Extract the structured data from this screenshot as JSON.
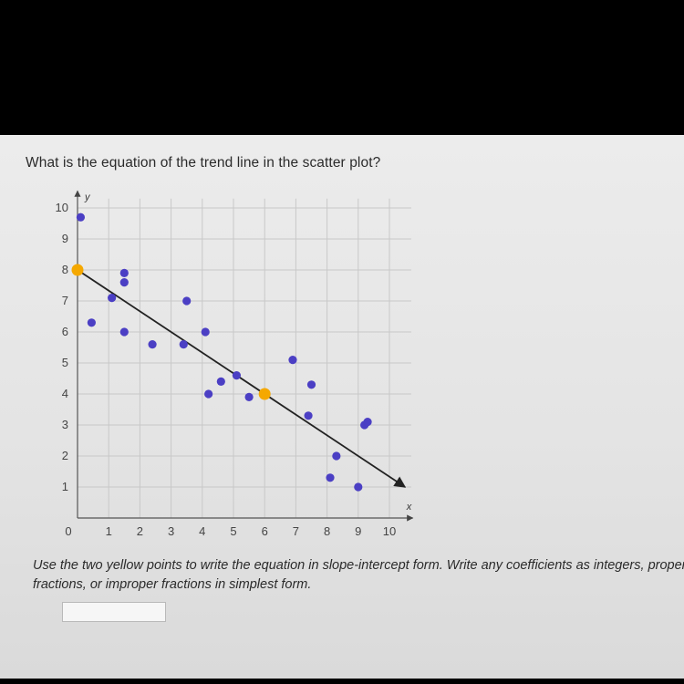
{
  "question": "What is the equation of the trend line in the scatter plot?",
  "instructions": "Use the two yellow points to write the equation in slope-intercept form. Write any coefficients as integers, proper fractions, or improper fractions in simplest form.",
  "answer_input": {
    "value": ""
  },
  "colors": {
    "point": "#4b3fc4",
    "highlight": "#f5a800",
    "line": "#222222",
    "grid": "#c8c8c8"
  },
  "chart_data": {
    "type": "scatter",
    "title": "",
    "xlabel": "x",
    "ylabel": "y",
    "xlim": [
      0,
      10
    ],
    "ylim": [
      0,
      10
    ],
    "grid": true,
    "x_ticks": [
      "0",
      "1",
      "2",
      "3",
      "4",
      "5",
      "6",
      "7",
      "8",
      "9",
      "10"
    ],
    "y_ticks": [
      "1",
      "2",
      "3",
      "4",
      "5",
      "6",
      "7",
      "8",
      "9",
      "10"
    ],
    "series": [
      {
        "points": [
          [
            0.1,
            9.7
          ],
          [
            0.45,
            6.3
          ],
          [
            1.1,
            7.1
          ],
          [
            1.5,
            7.9
          ],
          [
            1.5,
            7.6
          ],
          [
            1.5,
            6.0
          ],
          [
            2.4,
            5.6
          ],
          [
            3.4,
            5.6
          ],
          [
            3.5,
            7.0
          ],
          [
            4.2,
            4.0
          ],
          [
            4.1,
            6.0
          ],
          [
            4.6,
            4.4
          ],
          [
            5.1,
            4.6
          ],
          [
            5.5,
            3.9
          ],
          [
            6.9,
            5.1
          ],
          [
            7.4,
            3.3
          ],
          [
            7.5,
            4.3
          ],
          [
            8.1,
            1.3
          ],
          [
            8.3,
            2.0
          ],
          [
            9.0,
            1.0
          ],
          [
            9.2,
            3.0
          ],
          [
            9.3,
            3.1
          ]
        ]
      }
    ],
    "highlighted_points": [
      [
        0,
        8
      ],
      [
        6,
        4
      ]
    ],
    "trend_line": {
      "from": [
        0,
        8
      ],
      "to": [
        10.5,
        1
      ]
    }
  }
}
